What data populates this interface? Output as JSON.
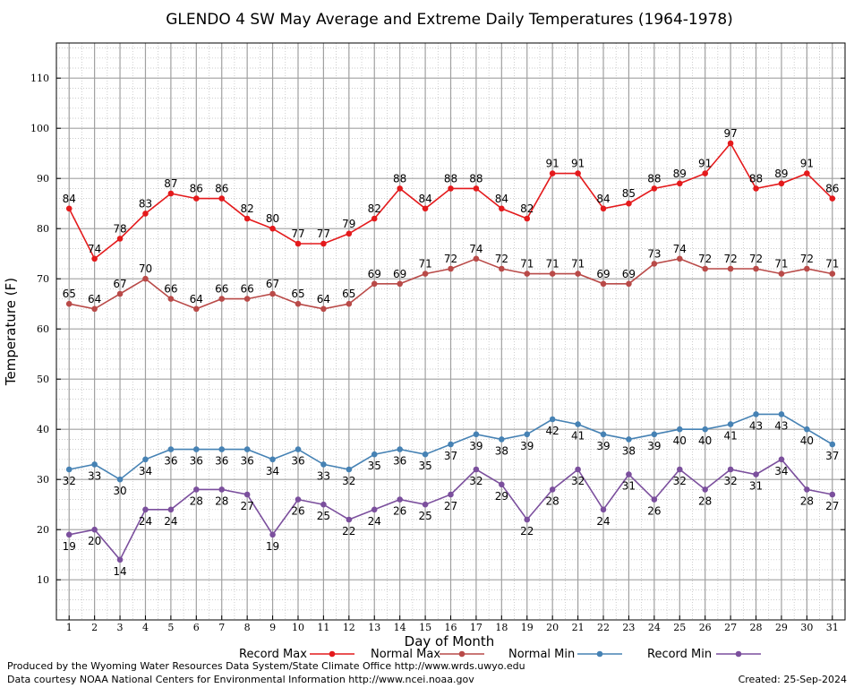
{
  "chart_data": {
    "type": "line",
    "title": "GLENDO 4 SW May Average and Extreme Daily Temperatures (1964-1978)",
    "xlabel": "Day of Month",
    "ylabel": "Temperature (F)",
    "xlim": [
      0.5,
      31.5
    ],
    "ylim": [
      2,
      117
    ],
    "y_ticks": [
      10,
      20,
      30,
      40,
      50,
      60,
      70,
      80,
      90,
      100,
      110
    ],
    "x": [
      1,
      2,
      3,
      4,
      5,
      6,
      7,
      8,
      9,
      10,
      11,
      12,
      13,
      14,
      15,
      16,
      17,
      18,
      19,
      20,
      21,
      22,
      23,
      24,
      25,
      26,
      27,
      28,
      29,
      30,
      31
    ],
    "grid": true,
    "legend_position": "bottom",
    "series": [
      {
        "name": "Record Max",
        "color": "#e41a1c",
        "label_pos": "above",
        "values": [
          84,
          74,
          78,
          83,
          87,
          86,
          86,
          82,
          80,
          77,
          77,
          79,
          82,
          88,
          84,
          88,
          88,
          84,
          82,
          91,
          91,
          84,
          85,
          88,
          89,
          91,
          97,
          88,
          89,
          91,
          86
        ]
      },
      {
        "name": "Normal Max",
        "color": "#b94a48",
        "label_pos": "above",
        "values": [
          65,
          64,
          67,
          70,
          66,
          64,
          66,
          66,
          67,
          65,
          64,
          65,
          69,
          69,
          71,
          72,
          74,
          72,
          71,
          71,
          71,
          69,
          69,
          73,
          74,
          72,
          72,
          72,
          71,
          72,
          71
        ]
      },
      {
        "name": "Normal Min",
        "color": "#4682b4",
        "label_pos": "below",
        "values": [
          32,
          33,
          30,
          34,
          36,
          36,
          36,
          36,
          34,
          36,
          33,
          32,
          35,
          36,
          35,
          37,
          39,
          38,
          39,
          42,
          41,
          39,
          38,
          39,
          40,
          40,
          41,
          43,
          43,
          40,
          37
        ]
      },
      {
        "name": "Record Min",
        "color": "#7b4f9d",
        "label_pos": "below",
        "values": [
          19,
          20,
          14,
          24,
          24,
          28,
          28,
          27,
          19,
          26,
          25,
          22,
          24,
          26,
          25,
          27,
          32,
          29,
          22,
          28,
          32,
          24,
          31,
          26,
          32,
          28,
          32,
          31,
          34,
          28,
          27
        ]
      }
    ]
  },
  "footer": {
    "produced_by": "Produced by the Wyoming Water Resources Data System/State Climate Office http://www.wrds.uwyo.edu",
    "courtesy": "Data courtesy NOAA National Centers for Environmental Information http://www.ncei.noaa.gov",
    "created": "Created:  25-Sep-2024"
  }
}
